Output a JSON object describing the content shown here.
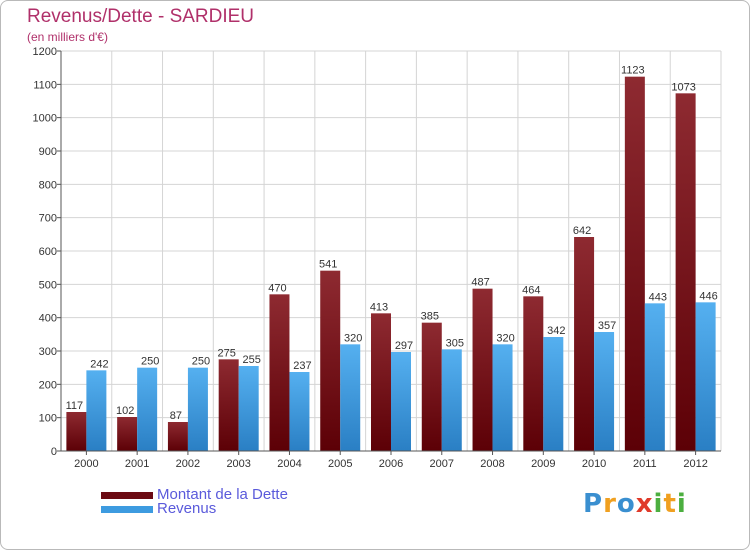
{
  "chart_data": {
    "type": "bar",
    "title": "Revenus/Dette - SARDIEU",
    "subtitle": "(en milliers d'€)",
    "categories": [
      "2000",
      "2001",
      "2002",
      "2003",
      "2004",
      "2005",
      "2006",
      "2007",
      "2008",
      "2009",
      "2010",
      "2011",
      "2012"
    ],
    "series": [
      {
        "name": "Montant de la Dette",
        "color": "#7a0f17",
        "values": [
          117,
          102,
          87,
          275,
          470,
          541,
          413,
          385,
          487,
          464,
          642,
          1123,
          1073
        ]
      },
      {
        "name": "Revenus",
        "color": "#3d9be0",
        "values": [
          242,
          250,
          250,
          255,
          237,
          320,
          297,
          305,
          320,
          342,
          357,
          443,
          446
        ]
      }
    ],
    "ylim": [
      0,
      1200
    ],
    "yticks": [
      0,
      100,
      200,
      300,
      400,
      500,
      600,
      700,
      800,
      900,
      1000,
      1100,
      1200
    ],
    "grid": true,
    "legend": "bottom-left"
  },
  "logo": {
    "letters": [
      "P",
      "r",
      "o",
      "x",
      "i",
      "t",
      "i"
    ]
  }
}
